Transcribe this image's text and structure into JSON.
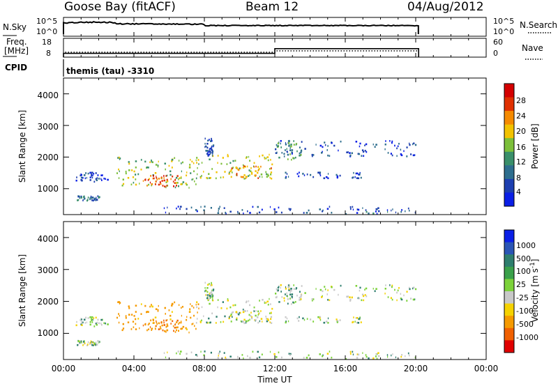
{
  "header": {
    "station": "Goose Bay (fitACF)",
    "beam": "Beam 12",
    "date": "04/Aug/2012"
  },
  "noise_panel": {
    "left_label": "N.Sky",
    "left_ticks": [
      "10^5",
      "10^0"
    ],
    "right_ticks": [
      "10^5",
      "10^0"
    ],
    "right_label": "N.Search"
  },
  "freq_panel": {
    "left_label_1": "Freq.",
    "left_label_2": "[MHz]",
    "left_ticks": [
      "18",
      "8"
    ],
    "right_ticks": [
      "60",
      "0"
    ],
    "right_label": "Nave"
  },
  "cpid": {
    "label": "CPID",
    "text": "themis (tau) -3310"
  },
  "time_axis": {
    "label": "Time UT",
    "ticks": [
      "00:00",
      "04:00",
      "08:00",
      "12:00",
      "16:00",
      "20:00",
      "00:00"
    ]
  },
  "power_panel": {
    "ylabel": "Slant Range [km]",
    "yticks": [
      "1000",
      "2000",
      "3000",
      "4000"
    ],
    "colorbar_label": "Power [dB]",
    "colorbar_ticks": [
      "4",
      "8",
      "12",
      "16",
      "20",
      "24",
      "28"
    ],
    "colors": [
      "#0a1fe6",
      "#1d3fb0",
      "#2e6e8e",
      "#3a8f6a",
      "#7cbf3a",
      "#f2c200",
      "#f58a00",
      "#e03000",
      "#d40000"
    ]
  },
  "velocity_panel": {
    "ylabel": "Slant Range [km]",
    "yticks": [
      "1000",
      "2000",
      "3000",
      "4000"
    ],
    "colorbar_label": "Velocity [m s^-1]",
    "colorbar_ticks": [
      "1000",
      "500",
      "100",
      "25",
      "-25",
      "-100",
      "-500",
      "-1000"
    ],
    "colors": [
      "#0a1fe6",
      "#2a55b5",
      "#2e7e6e",
      "#3aa04a",
      "#7cd23a",
      "#c8c8c8",
      "#f5d200",
      "#f59a00",
      "#f06000",
      "#e00000"
    ]
  },
  "chart_data": {
    "type": "heatmap",
    "title": "Goose Bay (fitACF)  Beam 12  04/Aug/2012",
    "xlabel": "Time UT",
    "ylabel": "Slant Range [km]",
    "xlim": [
      "00:00",
      "24:00"
    ],
    "ylim": [
      180,
      4500
    ],
    "panels": [
      "Power [dB]",
      "Velocity [m s^-1]"
    ],
    "frequency_mhz": [
      {
        "from": "00:00",
        "to": "12:00",
        "value": 10
      },
      {
        "from": "12:00",
        "to": "20:10",
        "value": 12.5
      }
    ],
    "scatter_regions": [
      {
        "t_start": "00:30",
        "t_end": "02:30",
        "range_min": 1200,
        "range_max": 1500,
        "power_db": 6,
        "velocity": 25
      },
      {
        "t_start": "00:45",
        "t_end": "02:00",
        "range_min": 600,
        "range_max": 750,
        "power_db": 10,
        "velocity": 25
      },
      {
        "t_start": "03:00",
        "t_end": "07:40",
        "range_min": 1000,
        "range_max": 2000,
        "power_db": 17,
        "velocity": -110
      },
      {
        "t_start": "04:30",
        "t_end": "06:30",
        "range_min": 1050,
        "range_max": 1400,
        "power_db": 26,
        "velocity": -300
      },
      {
        "t_start": "07:30",
        "t_end": "11:50",
        "range_min": 1300,
        "range_max": 2100,
        "power_db": 17,
        "velocity": 20
      },
      {
        "t_start": "09:30",
        "t_end": "11:50",
        "range_min": 1300,
        "range_max": 1700,
        "power_db": 22,
        "velocity": 10
      },
      {
        "t_start": "08:00",
        "t_end": "08:30",
        "range_min": 2000,
        "range_max": 2600,
        "power_db": 7,
        "velocity": 25
      },
      {
        "t_start": "12:00",
        "t_end": "20:00",
        "range_min": 2000,
        "range_max": 2500,
        "power_db": 7,
        "velocity": 20
      },
      {
        "t_start": "12:00",
        "t_end": "13:30",
        "range_min": 1900,
        "range_max": 2500,
        "power_db": 13,
        "velocity": 20
      },
      {
        "t_start": "12:30",
        "t_end": "17:00",
        "range_min": 1300,
        "range_max": 1500,
        "power_db": 6,
        "velocity": 25
      },
      {
        "t_start": "05:00",
        "t_end": "20:00",
        "range_min": 180,
        "range_max": 420,
        "power_db": 8,
        "velocity": 25
      }
    ]
  }
}
